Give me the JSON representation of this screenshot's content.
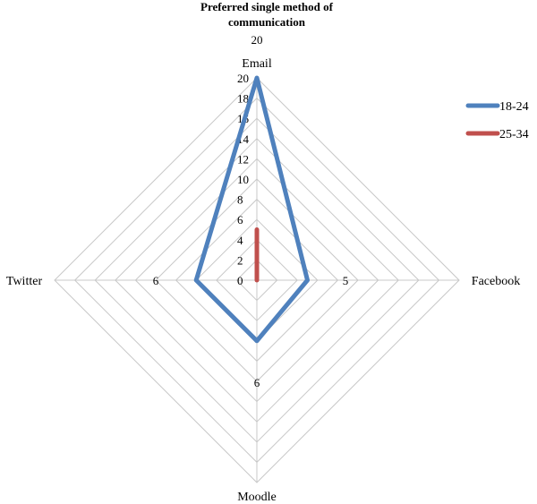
{
  "chart_data": {
    "type": "radar",
    "title_line1": "Preferred single method of",
    "title_line2": "communication",
    "categories": [
      "Email",
      "Facebook",
      "Moodle",
      "Twitter"
    ],
    "rmax": 20,
    "tick_step": 2,
    "series": [
      {
        "name": "18-24",
        "values": [
          20,
          5,
          6,
          6
        ],
        "color": "#4F81BD"
      },
      {
        "name": "25-34",
        "values": [
          5,
          0,
          0,
          0
        ],
        "color": "#C0504D"
      }
    ],
    "data_labels": [
      "20",
      "5",
      "6",
      "6"
    ],
    "legend_position": "right",
    "grid": true
  }
}
